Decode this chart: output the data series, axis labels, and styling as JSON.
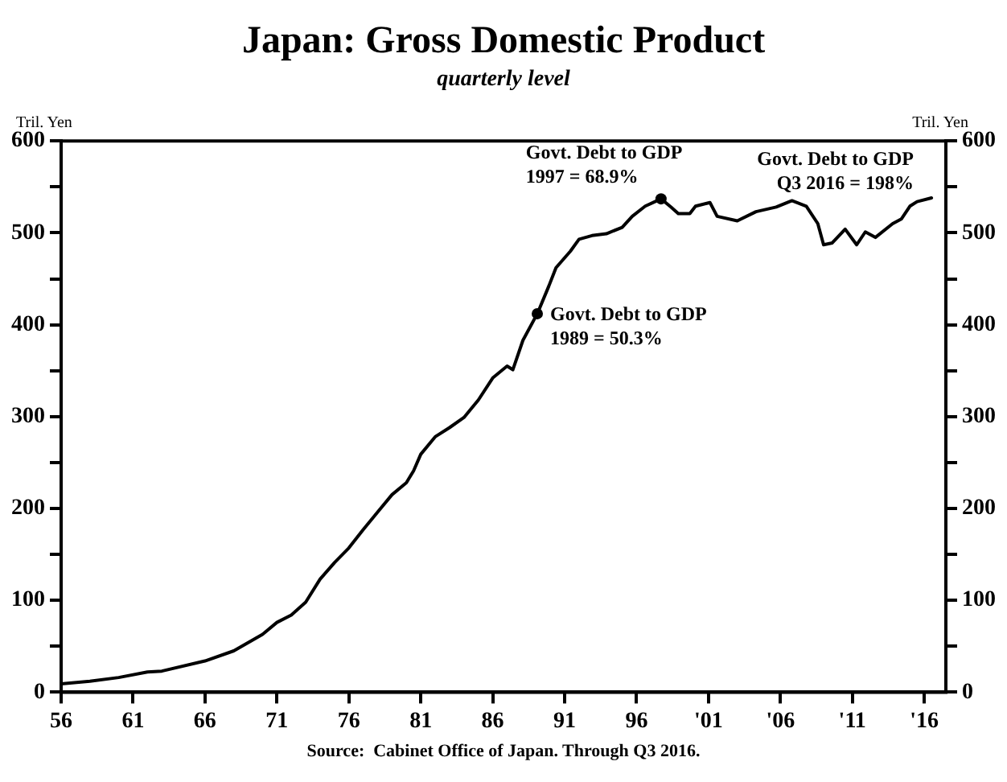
{
  "chart_data": {
    "type": "line",
    "title": "Japan: Gross Domestic Product",
    "subtitle": "quarterly level",
    "ylabel": "Tril. Yen",
    "y2label": "Tril. Yen",
    "x": [
      1956,
      1958,
      1960,
      1962,
      1963,
      1966,
      1968,
      1970,
      1971,
      1972,
      1973,
      1974,
      1975,
      1976,
      1977,
      1978,
      1979,
      1980,
      1980.5,
      1981,
      1982,
      1983,
      1984,
      1985,
      1986,
      1987,
      1987.4,
      1988.1,
      1989.1,
      1989.9,
      1990.4,
      1991.4,
      1992,
      1992.9,
      1993.9,
      1995,
      1995.7,
      1996.6,
      1997.7,
      1998.4,
      1998.9,
      1999.7,
      2000.1,
      2001.1,
      2001.6,
      2003,
      2004.3,
      2005.7,
      2006.8,
      2007.8,
      2008.6,
      2009,
      2009.6,
      2010.5,
      2011.3,
      2011.9,
      2012.6,
      2013.8,
      2014.4,
      2015,
      2015.5,
      2016.5
    ],
    "series": [
      {
        "color": "#000000",
        "values": [
          9,
          12,
          16,
          22,
          23,
          34,
          45,
          63,
          76,
          84,
          98,
          123,
          141,
          157,
          177,
          196,
          215,
          228,
          241,
          259,
          278,
          288,
          299,
          318,
          342,
          355,
          351,
          383,
          412,
          442,
          462,
          480,
          493,
          497,
          499,
          506,
          518,
          529,
          537,
          528,
          521,
          521,
          529,
          533,
          518,
          513,
          523,
          528,
          535,
          529,
          510,
          487,
          489,
          504,
          487,
          501,
          495,
          510,
          515,
          529,
          534,
          538
        ]
      }
    ],
    "xlim": [
      1956,
      2017.5
    ],
    "xticks": [
      {
        "value": 1956,
        "label": "56"
      },
      {
        "value": 1961,
        "label": "61"
      },
      {
        "value": 1966,
        "label": "66"
      },
      {
        "value": 1971,
        "label": "71"
      },
      {
        "value": 1976,
        "label": "76"
      },
      {
        "value": 1981,
        "label": "81"
      },
      {
        "value": 1986,
        "label": "86"
      },
      {
        "value": 1991,
        "label": "91"
      },
      {
        "value": 1996,
        "label": "96"
      },
      {
        "value": 2001,
        "label": "'01"
      },
      {
        "value": 2006,
        "label": "'06"
      },
      {
        "value": 2011,
        "label": "'11"
      },
      {
        "value": 2016,
        "label": "'16"
      }
    ],
    "ylim": [
      0,
      600
    ],
    "yticks": [
      0,
      {
        "value": 50,
        "label": null
      },
      100,
      {
        "value": 150,
        "label": null
      },
      200,
      {
        "value": 250,
        "label": null
      },
      300,
      {
        "value": 350,
        "label": null
      },
      400,
      {
        "value": 450,
        "label": null
      },
      500,
      {
        "value": 550,
        "label": null
      },
      600
    ],
    "y2lim": [
      0,
      600
    ],
    "y2ticks": [
      0,
      {
        "value": 50,
        "label": null
      },
      100,
      {
        "value": 150,
        "label": null
      },
      200,
      {
        "value": 250,
        "label": null
      },
      300,
      {
        "value": 350,
        "label": null
      },
      400,
      {
        "value": 450,
        "label": null
      },
      500,
      {
        "value": 550,
        "label": null
      },
      600
    ],
    "annotations": [
      {
        "text": "Govt. Debt to GDP\n1989 = 50.3%",
        "x": 1989.1,
        "y": 412
      },
      {
        "text": "Govt. Debt to GDP\n1997 = 68.9%",
        "x": 1997.7,
        "y": 537
      },
      "Govt. Debt to GDP\nQ3 2016 = 198%",
      "Source:  Cabinet Office of Japan. Through Q3 2016."
    ],
    "grid": false,
    "legend": false,
    "marker": "none",
    "line_style": "solid"
  }
}
